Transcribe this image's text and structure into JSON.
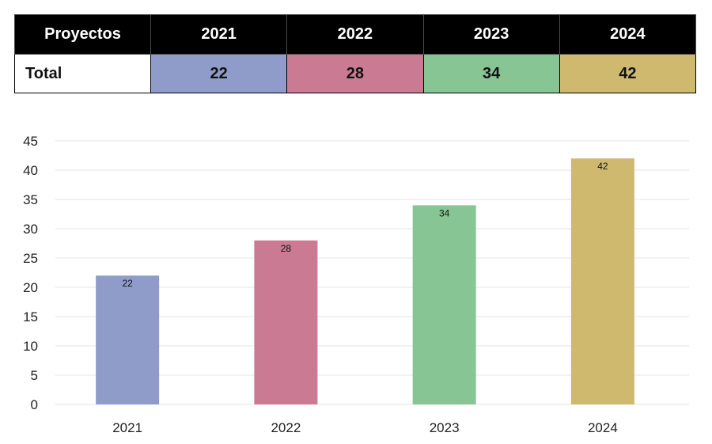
{
  "table": {
    "header_label": "Proyectos",
    "row_label": "Total",
    "years": [
      "2021",
      "2022",
      "2023",
      "2024"
    ],
    "values": [
      "22",
      "28",
      "34",
      "42"
    ]
  },
  "colors": [
    "#8f9cca",
    "#ca7a92",
    "#88c595",
    "#cfb96f"
  ],
  "chart_data": {
    "type": "bar",
    "categories": [
      "2021",
      "2022",
      "2023",
      "2024"
    ],
    "values": [
      22,
      28,
      34,
      42
    ],
    "title": "",
    "xlabel": "",
    "ylabel": "",
    "ylim": [
      0,
      45
    ],
    "yticks": [
      0,
      5,
      10,
      15,
      20,
      25,
      30,
      35,
      40,
      45
    ],
    "grid": true,
    "data_labels": true,
    "legend": "none"
  }
}
